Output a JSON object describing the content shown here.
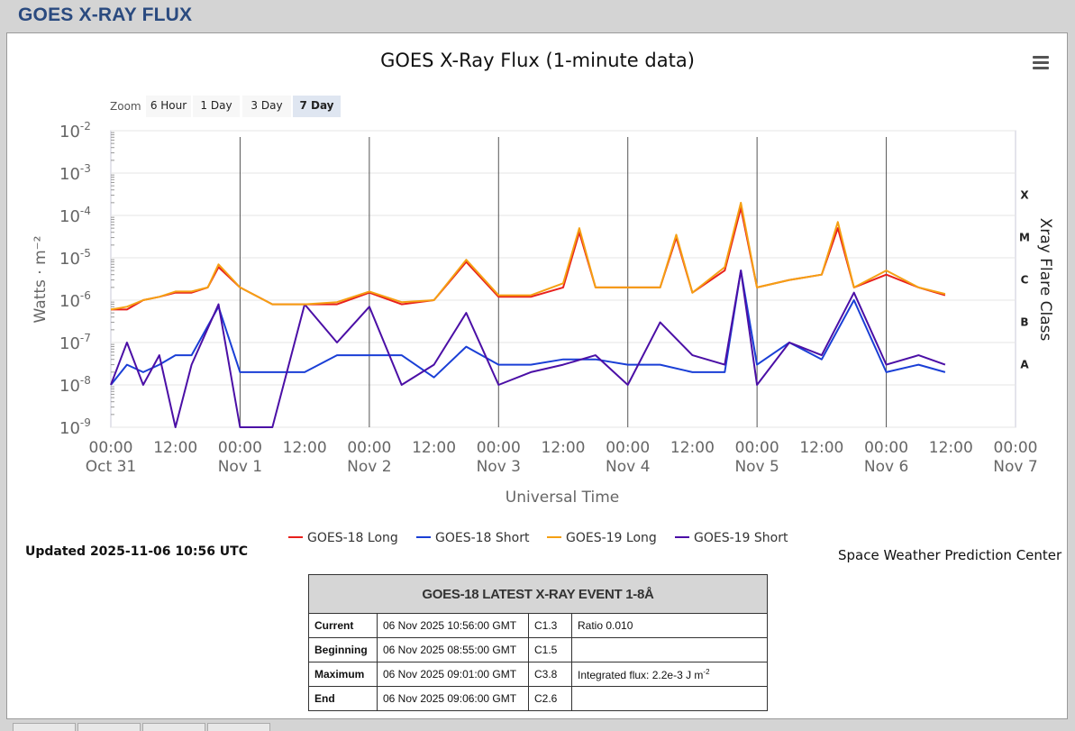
{
  "page": {
    "title": "GOES X-RAY FLUX"
  },
  "toolbar": {
    "zoom_label": "Zoom",
    "zoom_options": [
      "6 Hour",
      "1 Day",
      "3 Day",
      "7 Day"
    ],
    "zoom_selected": "7 Day"
  },
  "menu": {
    "icon": "hamburger-menu-icon"
  },
  "chart_data": {
    "type": "line",
    "title": "GOES X-Ray Flux (1-minute data)",
    "xlabel": "Universal Time",
    "ylabel": "Watts · m⁻²",
    "ylabel_right": "Xray Flare Class",
    "y_scale": "log",
    "ylim": [
      1e-09,
      0.01
    ],
    "y_ticks": [
      {
        "base": "10",
        "exp": "-2"
      },
      {
        "base": "10",
        "exp": "-3"
      },
      {
        "base": "10",
        "exp": "-4"
      },
      {
        "base": "10",
        "exp": "-5"
      },
      {
        "base": "10",
        "exp": "-6"
      },
      {
        "base": "10",
        "exp": "-7"
      },
      {
        "base": "10",
        "exp": "-8"
      },
      {
        "base": "10",
        "exp": "-9"
      }
    ],
    "flare_classes": [
      "X",
      "M",
      "C",
      "B",
      "A"
    ],
    "xlim": [
      "2025-10-31 00:00",
      "2025-11-07 00:00"
    ],
    "x_ticks": [
      {
        "time": "00:00",
        "date": "Oct 31"
      },
      {
        "time": "12:00",
        "date": ""
      },
      {
        "time": "00:00",
        "date": "Nov 1"
      },
      {
        "time": "12:00",
        "date": ""
      },
      {
        "time": "00:00",
        "date": "Nov 2"
      },
      {
        "time": "12:00",
        "date": ""
      },
      {
        "time": "00:00",
        "date": "Nov 3"
      },
      {
        "time": "12:00",
        "date": ""
      },
      {
        "time": "00:00",
        "date": "Nov 4"
      },
      {
        "time": "12:00",
        "date": ""
      },
      {
        "time": "00:00",
        "date": "Nov 5"
      },
      {
        "time": "12:00",
        "date": ""
      },
      {
        "time": "00:00",
        "date": "Nov 6"
      },
      {
        "time": "12:00",
        "date": ""
      },
      {
        "time": "00:00",
        "date": "Nov 7"
      }
    ],
    "legend_position": "bottom-center",
    "series": [
      {
        "name": "GOES-18 Long",
        "color": "#e8201c",
        "x": [
          "2025-10-31 00:00",
          "2025-10-31 03:00",
          "2025-10-31 06:00",
          "2025-10-31 09:00",
          "2025-10-31 12:00",
          "2025-10-31 15:00",
          "2025-10-31 18:00",
          "2025-10-31 20:00",
          "2025-11-01 00:00",
          "2025-11-01 06:00",
          "2025-11-01 12:00",
          "2025-11-01 18:00",
          "2025-11-02 00:00",
          "2025-11-02 06:00",
          "2025-11-02 12:00",
          "2025-11-02 18:00",
          "2025-11-03 00:00",
          "2025-11-03 06:00",
          "2025-11-03 12:00",
          "2025-11-03 15:00",
          "2025-11-03 18:00",
          "2025-11-04 00:00",
          "2025-11-04 06:00",
          "2025-11-04 09:00",
          "2025-11-04 12:00",
          "2025-11-04 18:00",
          "2025-11-04 21:00",
          "2025-11-05 00:00",
          "2025-11-05 06:00",
          "2025-11-05 12:00",
          "2025-11-05 15:00",
          "2025-11-05 18:00",
          "2025-11-06 00:00",
          "2025-11-06 06:00",
          "2025-11-06 10:56"
        ],
        "y": [
          6e-07,
          6e-07,
          1e-06,
          1.2e-06,
          1.5e-06,
          1.5e-06,
          2e-06,
          6e-06,
          2e-06,
          8e-07,
          8e-07,
          8e-07,
          1.5e-06,
          8e-07,
          1e-06,
          8e-06,
          1.2e-06,
          1.2e-06,
          2e-06,
          4e-05,
          2e-06,
          2e-06,
          2e-06,
          3e-05,
          1.5e-06,
          5e-06,
          0.00015,
          2e-06,
          3e-06,
          4e-06,
          5e-05,
          2e-06,
          4e-06,
          2e-06,
          1.3e-06
        ]
      },
      {
        "name": "GOES-18 Short",
        "color": "#1a3fd6",
        "x": [
          "2025-10-31 00:00",
          "2025-10-31 03:00",
          "2025-10-31 06:00",
          "2025-10-31 09:00",
          "2025-10-31 12:00",
          "2025-10-31 15:00",
          "2025-10-31 20:00",
          "2025-11-01 00:00",
          "2025-11-01 06:00",
          "2025-11-01 12:00",
          "2025-11-01 18:00",
          "2025-11-02 00:00",
          "2025-11-02 06:00",
          "2025-11-02 12:00",
          "2025-11-02 18:00",
          "2025-11-03 00:00",
          "2025-11-03 06:00",
          "2025-11-03 12:00",
          "2025-11-03 18:00",
          "2025-11-04 00:00",
          "2025-11-04 06:00",
          "2025-11-04 12:00",
          "2025-11-04 18:00",
          "2025-11-04 21:00",
          "2025-11-05 00:00",
          "2025-11-05 06:00",
          "2025-11-05 12:00",
          "2025-11-05 18:00",
          "2025-11-06 00:00",
          "2025-11-06 06:00",
          "2025-11-06 10:56"
        ],
        "y": [
          1e-08,
          3e-08,
          2e-08,
          3e-08,
          5e-08,
          5e-08,
          7e-07,
          2e-08,
          2e-08,
          2e-08,
          5e-08,
          5e-08,
          5e-08,
          1.5e-08,
          8e-08,
          3e-08,
          3e-08,
          4e-08,
          4e-08,
          3e-08,
          3e-08,
          2e-08,
          2e-08,
          5e-06,
          3e-08,
          1e-07,
          4e-08,
          1e-06,
          2e-08,
          3e-08,
          2e-08
        ]
      },
      {
        "name": "GOES-19 Long",
        "color": "#f5a013",
        "x": [
          "2025-10-31 00:00",
          "2025-10-31 03:00",
          "2025-10-31 06:00",
          "2025-10-31 09:00",
          "2025-10-31 12:00",
          "2025-10-31 15:00",
          "2025-10-31 18:00",
          "2025-10-31 20:00",
          "2025-11-01 00:00",
          "2025-11-01 06:00",
          "2025-11-01 12:00",
          "2025-11-01 18:00",
          "2025-11-02 00:00",
          "2025-11-02 06:00",
          "2025-11-02 12:00",
          "2025-11-02 18:00",
          "2025-11-03 00:00",
          "2025-11-03 06:00",
          "2025-11-03 12:00",
          "2025-11-03 15:00",
          "2025-11-03 18:00",
          "2025-11-04 00:00",
          "2025-11-04 06:00",
          "2025-11-04 09:00",
          "2025-11-04 12:00",
          "2025-11-04 18:00",
          "2025-11-04 21:00",
          "2025-11-05 00:00",
          "2025-11-05 06:00",
          "2025-11-05 12:00",
          "2025-11-05 15:00",
          "2025-11-05 18:00",
          "2025-11-06 00:00",
          "2025-11-06 06:00",
          "2025-11-06 10:56"
        ],
        "y": [
          6e-07,
          7e-07,
          1e-06,
          1.2e-06,
          1.6e-06,
          1.6e-06,
          2e-06,
          7e-06,
          2e-06,
          8e-07,
          8e-07,
          9e-07,
          1.6e-06,
          9e-07,
          1e-06,
          9e-06,
          1.3e-06,
          1.3e-06,
          2.5e-06,
          5e-05,
          2e-06,
          2e-06,
          2e-06,
          3.5e-05,
          1.5e-06,
          6e-06,
          0.0002,
          2e-06,
          3e-06,
          4e-06,
          7e-05,
          2e-06,
          5e-06,
          2e-06,
          1.4e-06
        ]
      },
      {
        "name": "GOES-19 Short",
        "color": "#4b0fa6",
        "x": [
          "2025-10-31 00:00",
          "2025-10-31 03:00",
          "2025-10-31 06:00",
          "2025-10-31 09:00",
          "2025-10-31 12:00",
          "2025-10-31 15:00",
          "2025-10-31 20:00",
          "2025-11-01 00:00",
          "2025-11-01 06:00",
          "2025-11-01 12:00",
          "2025-11-01 18:00",
          "2025-11-02 00:00",
          "2025-11-02 06:00",
          "2025-11-02 12:00",
          "2025-11-02 18:00",
          "2025-11-03 00:00",
          "2025-11-03 06:00",
          "2025-11-03 12:00",
          "2025-11-03 18:00",
          "2025-11-04 00:00",
          "2025-11-04 06:00",
          "2025-11-04 12:00",
          "2025-11-04 18:00",
          "2025-11-04 21:00",
          "2025-11-05 00:00",
          "2025-11-05 06:00",
          "2025-11-05 12:00",
          "2025-11-05 18:00",
          "2025-11-06 00:00",
          "2025-11-06 06:00",
          "2025-11-06 10:56"
        ],
        "y": [
          1e-08,
          1e-07,
          1e-08,
          5e-08,
          1e-09,
          3e-08,
          8e-07,
          1e-09,
          1e-09,
          8e-07,
          1e-07,
          7e-07,
          1e-08,
          3e-08,
          5e-07,
          1e-08,
          2e-08,
          3e-08,
          5e-08,
          1e-08,
          3e-07,
          5e-08,
          3e-08,
          5e-06,
          1e-08,
          1e-07,
          5e-08,
          1.5e-06,
          3e-08,
          5e-08,
          3e-08
        ]
      }
    ]
  },
  "status": {
    "updated": "Updated 2025-11-06 10:56 UTC",
    "credit": "Space Weather Prediction Center"
  },
  "event_table": {
    "title": "GOES-18 LATEST X-RAY EVENT 1-8Å",
    "rows": [
      {
        "label": "Current",
        "time": "06 Nov 2025 10:56:00 GMT",
        "class": "C1.3",
        "note": "Ratio 0.010"
      },
      {
        "label": "Beginning",
        "time": "06 Nov 2025 08:55:00 GMT",
        "class": "C1.5",
        "note": ""
      },
      {
        "label": "Maximum",
        "time": "06 Nov 2025 09:01:00 GMT",
        "class": "C3.8",
        "note": "Integrated flux: 2.2e-3 J m",
        "note_sup": "-2"
      },
      {
        "label": "End",
        "time": "06 Nov 2025 09:06:00 GMT",
        "class": "C2.6",
        "note": ""
      }
    ]
  }
}
